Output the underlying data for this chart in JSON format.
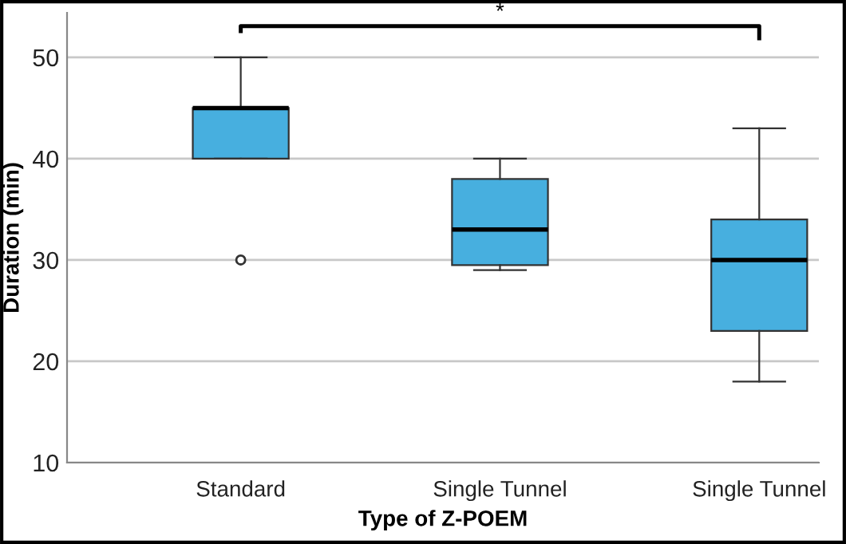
{
  "chart_data": {
    "type": "box",
    "xlabel": "Type of Z-POEM",
    "ylabel": "Duration (min)",
    "categories": [
      "Standard",
      "Single Tunnel",
      "Single Tunnel"
    ],
    "boxes": [
      {
        "low": 40,
        "q1": 40,
        "median": 45,
        "q3": 45,
        "high": 50,
        "outliers": [
          30
        ]
      },
      {
        "low": 29,
        "q1": 29.5,
        "median": 33,
        "q3": 38,
        "high": 40
      },
      {
        "low": 18,
        "q1": 23,
        "median": 30,
        "q3": 34,
        "high": 43
      }
    ],
    "color": "#47afdf",
    "ylim": [
      10,
      54.4
    ],
    "yticks": [
      10,
      20,
      30,
      40,
      50
    ],
    "grid": "y",
    "annotations": [
      "*"
    ]
  }
}
